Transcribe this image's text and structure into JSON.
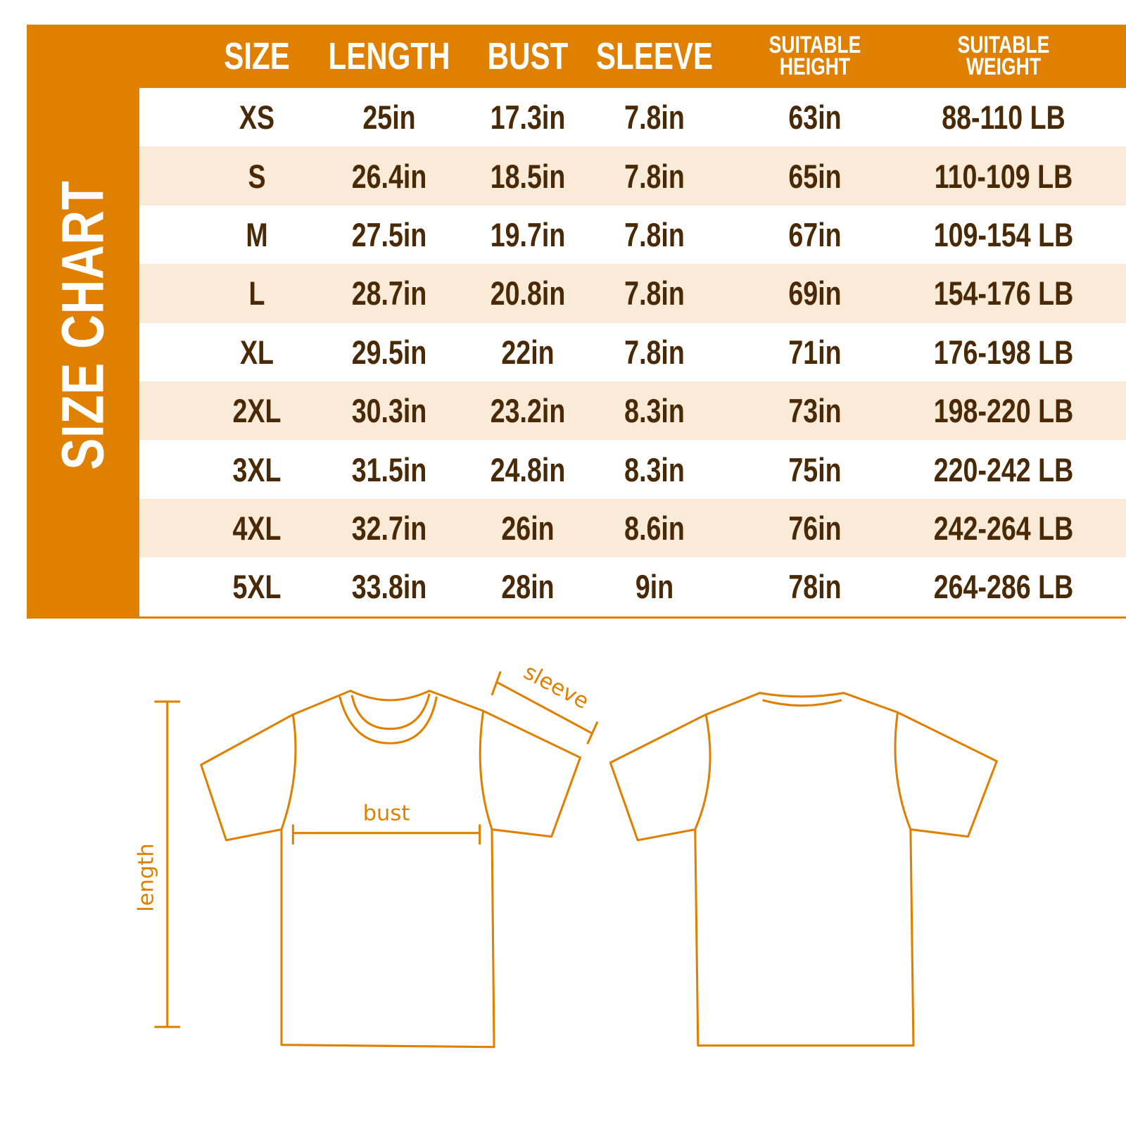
{
  "title": "SIZE CHART",
  "accent_color": "#e08000",
  "stripe_color": "#faebd9",
  "text_color": "#4a2a06",
  "headers": [
    "SIZE",
    "LENGTH",
    "BUST",
    "SLEEVE",
    "SUITABLE HEIGHT",
    "SUITABLE WEIGHT"
  ],
  "headers_split": {
    "height": [
      "SUITABLE",
      "HEIGHT"
    ],
    "weight": [
      "SUITABLE",
      "WEIGHT"
    ]
  },
  "rows": [
    [
      "XS",
      "25in",
      "17.3in",
      "7.8in",
      "63in",
      "88-110 LB"
    ],
    [
      "S",
      "26.4in",
      "18.5in",
      "7.8in",
      "65in",
      "110-109 LB"
    ],
    [
      "M",
      "27.5in",
      "19.7in",
      "7.8in",
      "67in",
      "109-154 LB"
    ],
    [
      "L",
      "28.7in",
      "20.8in",
      "7.8in",
      "69in",
      "154-176 LB"
    ],
    [
      "XL",
      "29.5in",
      "22in",
      "7.8in",
      "71in",
      "176-198 LB"
    ],
    [
      "2XL",
      "30.3in",
      "23.2in",
      "8.3in",
      "73in",
      "198-220 LB"
    ],
    [
      "3XL",
      "31.5in",
      "24.8in",
      "8.3in",
      "75in",
      "220-242 LB"
    ],
    [
      "4XL",
      "32.7in",
      "26in",
      "8.6in",
      "76in",
      "242-264 LB"
    ],
    [
      "5XL",
      "33.8in",
      "28in",
      "9in",
      "78in",
      "264-286 LB"
    ]
  ],
  "diagram": {
    "length_label": "length",
    "bust_label": "bust",
    "sleeve_label": "sleeve"
  }
}
